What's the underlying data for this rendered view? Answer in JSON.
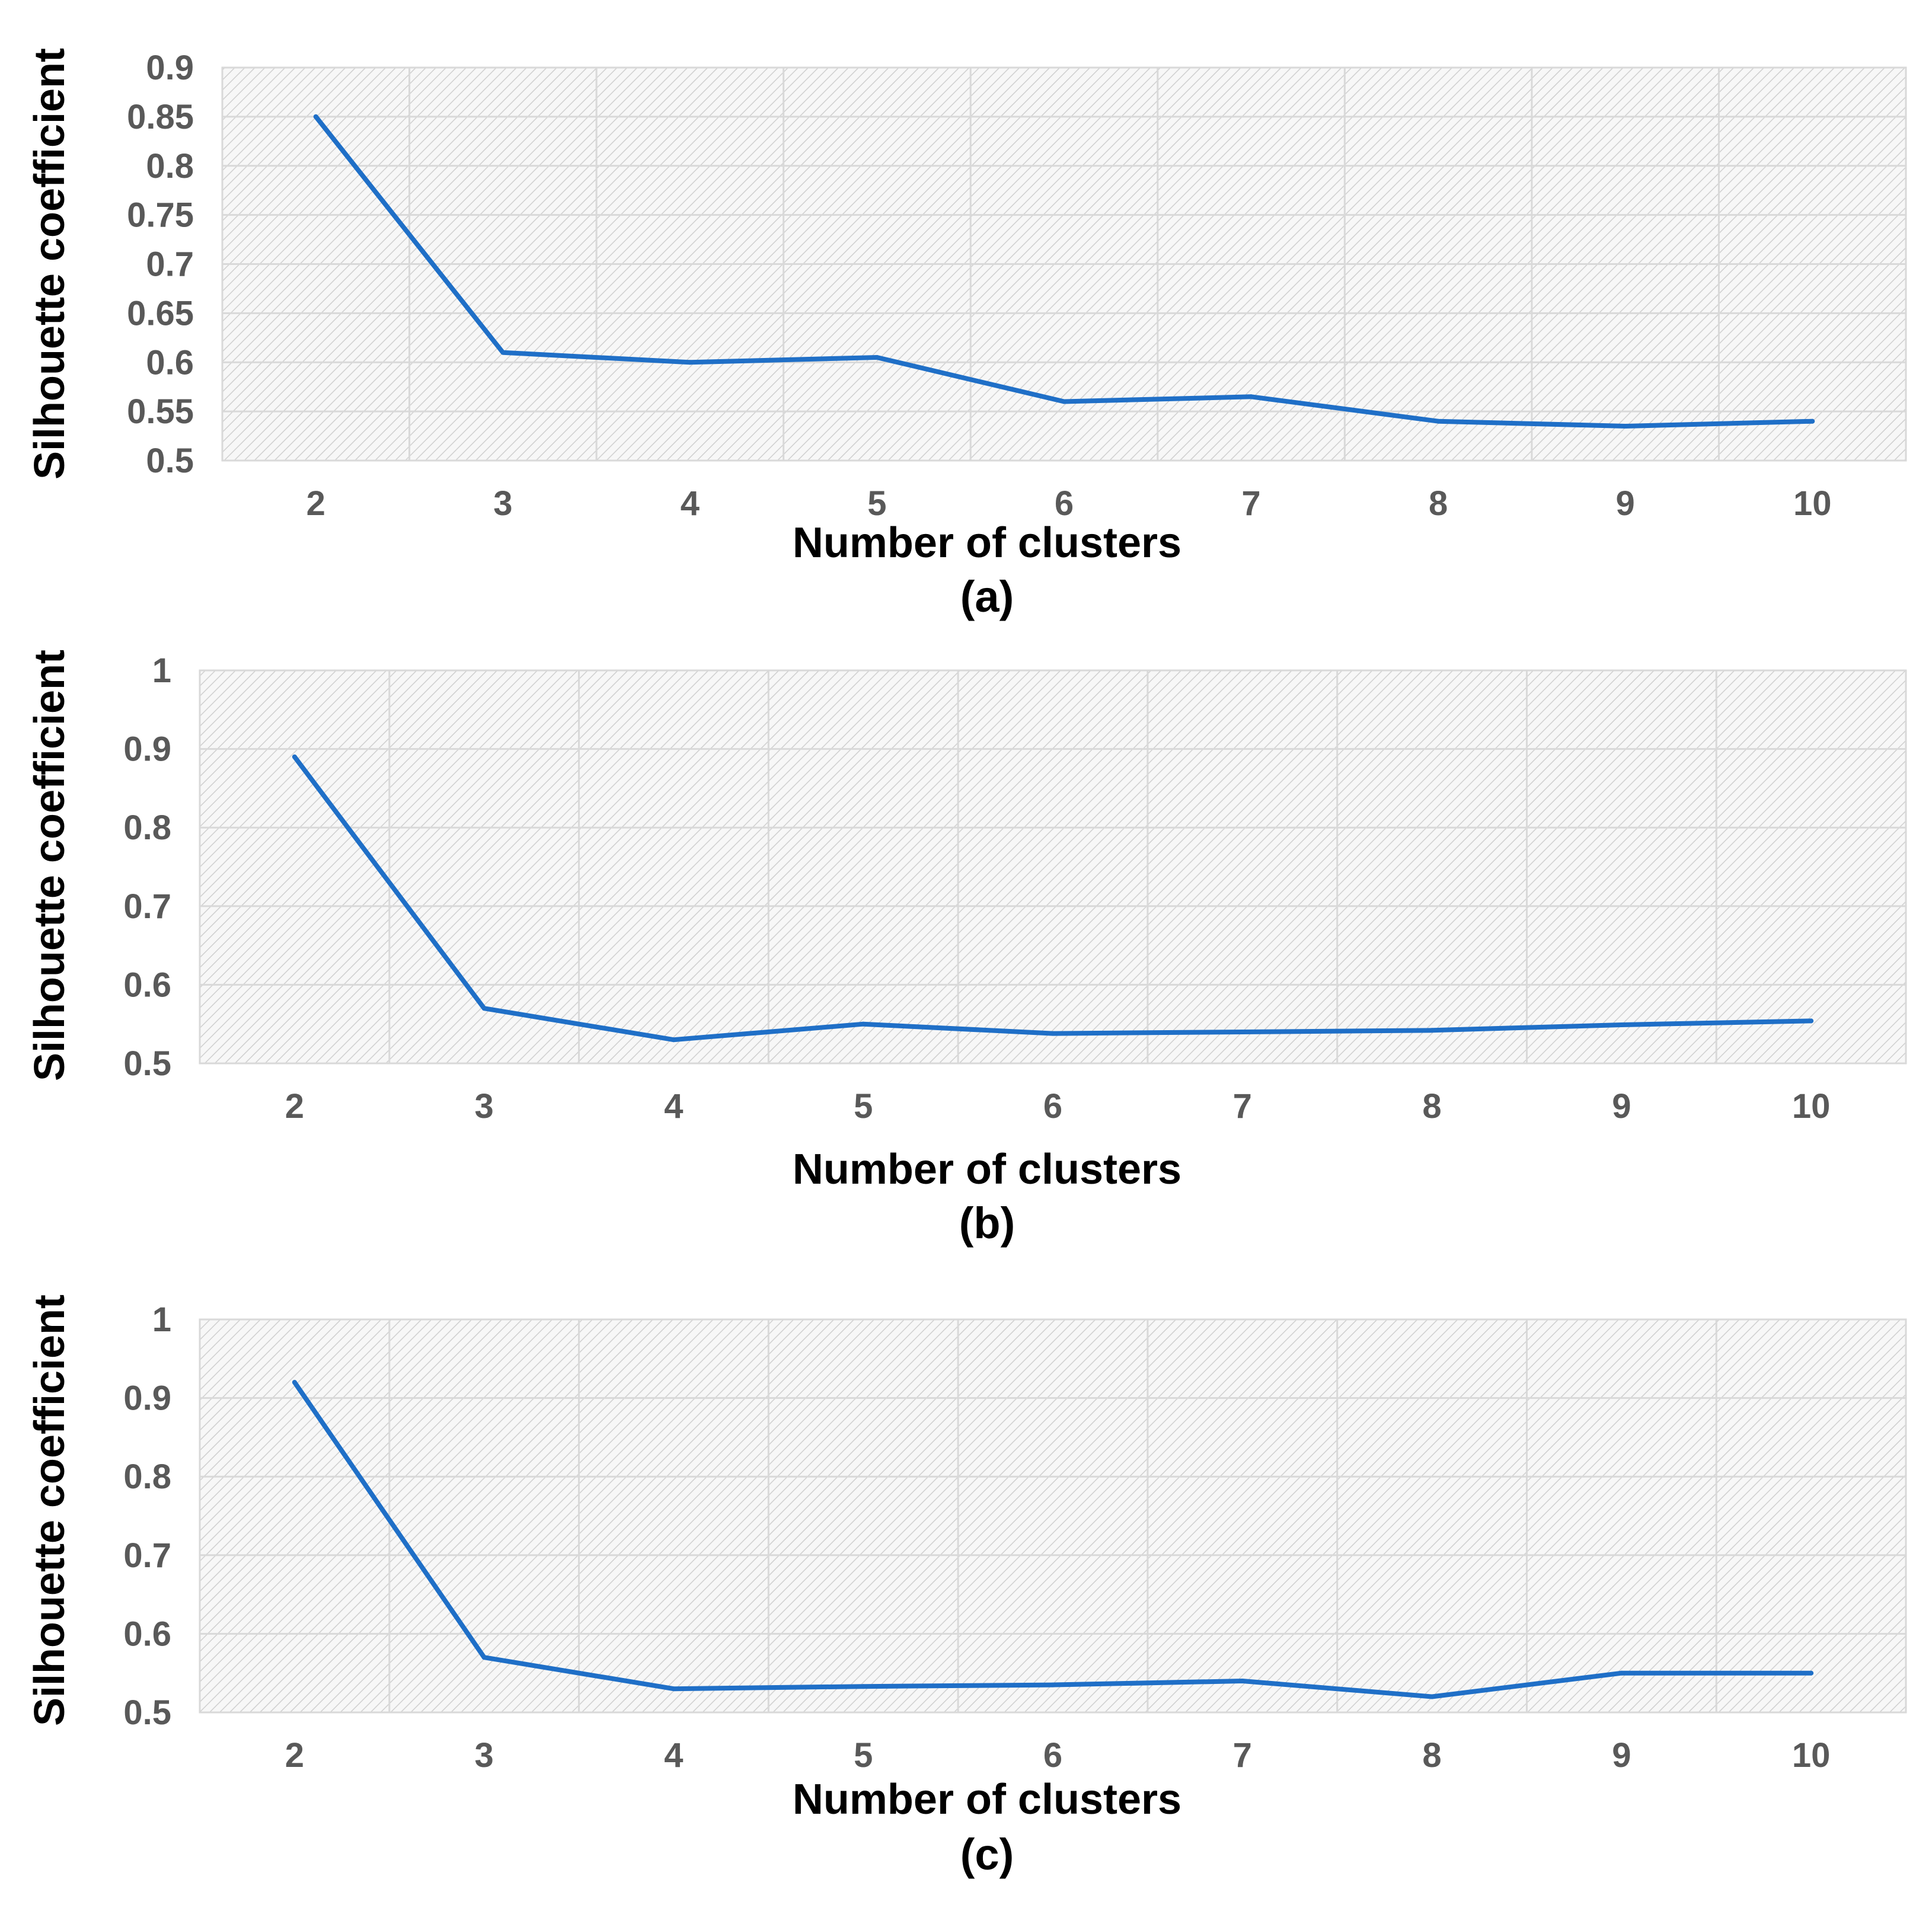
{
  "chart_data": [
    {
      "type": "line",
      "panel_label": "(a)",
      "xlabel": "Number of clusters",
      "ylabel": "Silhouette coefficient",
      "x": [
        2,
        3,
        4,
        5,
        6,
        7,
        8,
        9,
        10
      ],
      "x_tick_labels": [
        "2",
        "3",
        "4",
        "5",
        "6",
        "7",
        "8",
        "9",
        "10"
      ],
      "y_tick_values": [
        0.5,
        0.55,
        0.6,
        0.65,
        0.7,
        0.75,
        0.8,
        0.85,
        0.9
      ],
      "y_tick_labels": [
        "0.5",
        "0.55",
        "0.6",
        "0.65",
        "0.7",
        "0.75",
        "0.8",
        "0.85",
        "0.9"
      ],
      "ylim": [
        0.5,
        0.9
      ],
      "grid": true,
      "series": [
        {
          "name": "Silhouette coefficient",
          "values": [
            0.85,
            0.61,
            0.6,
            0.605,
            0.56,
            0.565,
            0.54,
            0.535,
            0.54
          ]
        }
      ]
    },
    {
      "type": "line",
      "panel_label": "(b)",
      "xlabel": "Number of clusters",
      "ylabel": "Silhouette coefficient",
      "x": [
        2,
        3,
        4,
        5,
        6,
        7,
        8,
        9,
        10
      ],
      "x_tick_labels": [
        "2",
        "3",
        "4",
        "5",
        "6",
        "7",
        "8",
        "9",
        "10"
      ],
      "y_tick_values": [
        0.5,
        0.6,
        0.7,
        0.8,
        0.9,
        1.0
      ],
      "y_tick_labels": [
        "0.5",
        "0.6",
        "0.7",
        "0.8",
        "0.9",
        "1"
      ],
      "ylim": [
        0.5,
        1.0
      ],
      "grid": true,
      "series": [
        {
          "name": "Silhouette coefficient",
          "values": [
            0.89,
            0.57,
            0.53,
            0.55,
            0.538,
            0.54,
            0.542,
            0.549,
            0.554
          ]
        }
      ]
    },
    {
      "type": "line",
      "panel_label": "(c)",
      "xlabel": "Number of clusters",
      "ylabel": "Silhouette coefficient",
      "x": [
        2,
        3,
        4,
        5,
        6,
        7,
        8,
        9,
        10
      ],
      "x_tick_labels": [
        "2",
        "3",
        "4",
        "5",
        "6",
        "7",
        "8",
        "9",
        "10"
      ],
      "y_tick_values": [
        0.5,
        0.6,
        0.7,
        0.8,
        0.9,
        1.0
      ],
      "y_tick_labels": [
        "0.5",
        "0.6",
        "0.7",
        "0.8",
        "0.9",
        "1"
      ],
      "ylim": [
        0.5,
        1.0
      ],
      "grid": true,
      "series": [
        {
          "name": "Silhouette coefficient",
          "values": [
            0.92,
            0.57,
            0.53,
            0.533,
            0.535,
            0.54,
            0.52,
            0.55,
            0.55
          ]
        }
      ]
    }
  ],
  "colors": {
    "series_line": "#1f6fc7",
    "grid": "#d9d9d9",
    "hatch": "#cfcfcf",
    "plot_background": "#f7f7f7",
    "tick_text": "#595959",
    "title_text": "#000000"
  }
}
